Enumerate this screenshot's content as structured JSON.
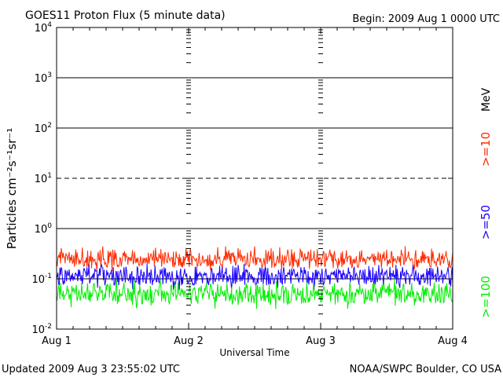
{
  "header": {
    "title": "GOES11 Proton Flux (5 minute data)",
    "begin": "Begin: 2009 Aug 1 0000 UTC"
  },
  "footer": {
    "updated": "Updated 2009 Aug  3 23:55:02 UTC",
    "credit": "NOAA/SWPC Boulder, CO USA"
  },
  "chart_data": {
    "type": "line",
    "title": "GOES11 Proton Flux (5 minute data)",
    "xlabel": "Universal Time",
    "ylabel": "Particles cm⁻²s⁻¹sr⁻¹",
    "y_scale": "log",
    "ylim": [
      0.01,
      10000
    ],
    "y_ticks": [
      {
        "value": 0.01,
        "base": "10",
        "exp": "-2"
      },
      {
        "value": 0.1,
        "base": "10",
        "exp": "-1"
      },
      {
        "value": 1,
        "base": "10",
        "exp": "0"
      },
      {
        "value": 10,
        "base": "10",
        "exp": "1"
      },
      {
        "value": 100,
        "base": "10",
        "exp": "2"
      },
      {
        "value": 1000,
        "base": "10",
        "exp": "3"
      },
      {
        "value": 10000,
        "base": "10",
        "exp": "4"
      }
    ],
    "x_ticks": [
      "Aug 1",
      "Aug 2",
      "Aug 3",
      "Aug 4"
    ],
    "xlim": [
      "2009-08-01",
      "2009-08-04"
    ],
    "gridlines": [
      {
        "value": 1000,
        "style": "solid"
      },
      {
        "value": 100,
        "style": "solid"
      },
      {
        "value": 10,
        "style": "dashed"
      },
      {
        "value": 1,
        "style": "solid"
      },
      {
        "value": 0.1,
        "style": "solid"
      }
    ],
    "legend_position": "right",
    "units_label": "MeV",
    "series": [
      {
        "name": ">=10",
        "color": "#ff2a00",
        "typical_range": [
          0.14,
          0.45
        ],
        "median": 0.22
      },
      {
        "name": ">=50",
        "color": "#1a00ff",
        "typical_range": [
          0.06,
          0.2
        ],
        "median": 0.1
      },
      {
        "name": ">=100",
        "color": "#00ee00",
        "typical_range": [
          0.025,
          0.1
        ],
        "median": 0.045
      }
    ]
  }
}
